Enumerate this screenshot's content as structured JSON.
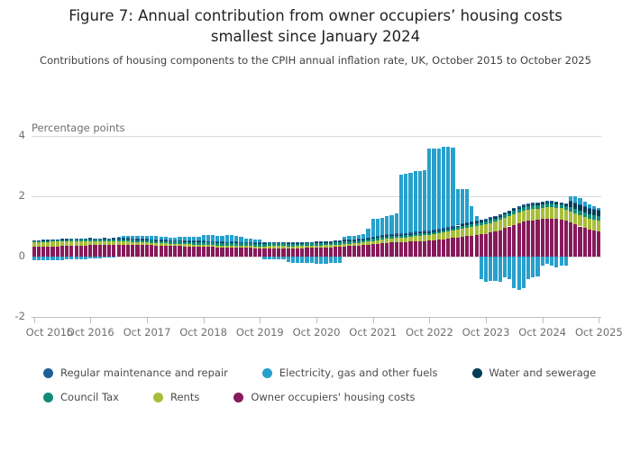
{
  "page": {
    "title": "Figure 7: Annual contribution from owner occupiers’ housing costs smallest since January 2024",
    "subtitle": "Contributions of housing components to the CPIH annual inflation rate, UK, October 2015 to October 2025"
  },
  "y_axis": {
    "label": "Percentage points",
    "ticks": [
      "4",
      "2",
      "0",
      "-2"
    ]
  },
  "x_axis": {
    "ticks": [
      "Oct 2015",
      "Oct 2016",
      "Oct 2017",
      "Oct 2018",
      "Oct 2019",
      "Oct 2020",
      "Oct 2021",
      "Oct 2022",
      "Oct 2023",
      "Oct 2024",
      "Oct 2025"
    ]
  },
  "legend": [
    {
      "label": "Regular maintenance and repair",
      "color": "#206095"
    },
    {
      "label": "Electricity, gas and other fuels",
      "color": "#27a0cc"
    },
    {
      "label": "Water and sewerage",
      "color": "#003c57"
    },
    {
      "label": "Council Tax",
      "color": "#118c7b"
    },
    {
      "label": "Rents",
      "color": "#a8bd3a"
    },
    {
      "label": "Owner occupiers' housing costs",
      "color": "#871a5b"
    }
  ],
  "chart_data": {
    "type": "bar",
    "stacked": true,
    "frequency": "monthly",
    "x_start": "Oct 2015",
    "x_end": "Oct 2025",
    "x_tick_labels": [
      "Oct 2015",
      "Oct 2016",
      "Oct 2017",
      "Oct 2018",
      "Oct 2019",
      "Oct 2020",
      "Oct 2021",
      "Oct 2022",
      "Oct 2023",
      "Oct 2024",
      "Oct 2025"
    ],
    "title": "Figure 7: Annual contribution from owner occupiers’ housing costs smallest since January 2024",
    "ylabel": "Percentage points",
    "ylim": [
      -2,
      4
    ],
    "grid": true,
    "legend_position": "bottom",
    "series": [
      {
        "name": "Owner occupiers' housing costs",
        "color": "#871a5b",
        "values": [
          0.32,
          0.32,
          0.33,
          0.33,
          0.34,
          0.34,
          0.35,
          0.35,
          0.36,
          0.36,
          0.37,
          0.37,
          0.38,
          0.38,
          0.38,
          0.39,
          0.39,
          0.4,
          0.4,
          0.4,
          0.4,
          0.39,
          0.39,
          0.39,
          0.38,
          0.38,
          0.37,
          0.37,
          0.36,
          0.36,
          0.35,
          0.35,
          0.34,
          0.34,
          0.33,
          0.33,
          0.33,
          0.32,
          0.32,
          0.31,
          0.31,
          0.3,
          0.3,
          0.3,
          0.29,
          0.29,
          0.29,
          0.28,
          0.28,
          0.28,
          0.28,
          0.28,
          0.28,
          0.28,
          0.27,
          0.27,
          0.28,
          0.28,
          0.29,
          0.29,
          0.3,
          0.3,
          0.31,
          0.31,
          0.32,
          0.33,
          0.34,
          0.35,
          0.36,
          0.37,
          0.38,
          0.4,
          0.42,
          0.43,
          0.45,
          0.46,
          0.47,
          0.48,
          0.48,
          0.49,
          0.5,
          0.51,
          0.52,
          0.52,
          0.53,
          0.54,
          0.56,
          0.58,
          0.6,
          0.62,
          0.64,
          0.66,
          0.68,
          0.7,
          0.72,
          0.74,
          0.76,
          0.8,
          0.84,
          0.88,
          0.95,
          1.0,
          1.05,
          1.1,
          1.15,
          1.18,
          1.2,
          1.22,
          1.24,
          1.25,
          1.25,
          1.24,
          1.22,
          1.18,
          1.12,
          1.06,
          1.0,
          0.95,
          0.9,
          0.87,
          0.85
        ]
      },
      {
        "name": "Rents",
        "color": "#a8bd3a",
        "values": [
          0.15,
          0.15,
          0.15,
          0.16,
          0.16,
          0.16,
          0.15,
          0.15,
          0.15,
          0.15,
          0.14,
          0.14,
          0.14,
          0.13,
          0.13,
          0.13,
          0.12,
          0.12,
          0.11,
          0.11,
          0.1,
          0.1,
          0.09,
          0.09,
          0.09,
          0.08,
          0.08,
          0.08,
          0.08,
          0.07,
          0.07,
          0.07,
          0.07,
          0.07,
          0.07,
          0.07,
          0.07,
          0.07,
          0.07,
          0.06,
          0.06,
          0.06,
          0.06,
          0.06,
          0.06,
          0.06,
          0.06,
          0.06,
          0.06,
          0.06,
          0.07,
          0.07,
          0.07,
          0.07,
          0.07,
          0.07,
          0.07,
          0.07,
          0.07,
          0.07,
          0.07,
          0.07,
          0.07,
          0.07,
          0.07,
          0.07,
          0.08,
          0.08,
          0.08,
          0.09,
          0.09,
          0.1,
          0.1,
          0.11,
          0.12,
          0.13,
          0.13,
          0.14,
          0.14,
          0.15,
          0.16,
          0.17,
          0.18,
          0.19,
          0.19,
          0.2,
          0.21,
          0.22,
          0.23,
          0.24,
          0.25,
          0.26,
          0.27,
          0.28,
          0.29,
          0.3,
          0.3,
          0.31,
          0.32,
          0.33,
          0.34,
          0.34,
          0.35,
          0.35,
          0.36,
          0.36,
          0.37,
          0.37,
          0.38,
          0.38,
          0.38,
          0.38,
          0.38,
          0.37,
          0.37,
          0.37,
          0.36,
          0.36,
          0.35,
          0.34,
          0.33
        ]
      },
      {
        "name": "Council Tax",
        "color": "#118c7b",
        "values": [
          0.04,
          0.04,
          0.04,
          0.04,
          0.04,
          0.04,
          0.06,
          0.06,
          0.06,
          0.06,
          0.06,
          0.06,
          0.06,
          0.06,
          0.06,
          0.06,
          0.06,
          0.06,
          0.08,
          0.08,
          0.08,
          0.08,
          0.08,
          0.08,
          0.08,
          0.08,
          0.08,
          0.08,
          0.08,
          0.08,
          0.09,
          0.09,
          0.09,
          0.09,
          0.09,
          0.09,
          0.09,
          0.09,
          0.09,
          0.09,
          0.09,
          0.09,
          0.1,
          0.1,
          0.1,
          0.1,
          0.1,
          0.1,
          0.1,
          0.1,
          0.1,
          0.1,
          0.1,
          0.1,
          0.1,
          0.1,
          0.1,
          0.1,
          0.1,
          0.1,
          0.1,
          0.1,
          0.1,
          0.1,
          0.1,
          0.1,
          0.1,
          0.1,
          0.1,
          0.1,
          0.1,
          0.1,
          0.1,
          0.1,
          0.1,
          0.1,
          0.1,
          0.1,
          0.08,
          0.08,
          0.08,
          0.08,
          0.08,
          0.08,
          0.08,
          0.08,
          0.08,
          0.08,
          0.08,
          0.08,
          0.1,
          0.1,
          0.1,
          0.1,
          0.1,
          0.1,
          0.1,
          0.1,
          0.1,
          0.1,
          0.1,
          0.1,
          0.12,
          0.12,
          0.12,
          0.12,
          0.12,
          0.12,
          0.12,
          0.12,
          0.12,
          0.12,
          0.12,
          0.12,
          0.16,
          0.16,
          0.16,
          0.16,
          0.16,
          0.16,
          0.16
        ]
      },
      {
        "name": "Water and sewerage",
        "color": "#003c57",
        "values": [
          0.02,
          0.02,
          0.02,
          0.02,
          0.02,
          0.02,
          0.02,
          0.02,
          0.02,
          0.02,
          0.02,
          0.02,
          0.02,
          0.02,
          0.02,
          0.02,
          0.02,
          0.02,
          0.02,
          0.02,
          0.02,
          0.02,
          0.02,
          0.02,
          0.02,
          0.02,
          0.02,
          0.02,
          0.02,
          0.02,
          0.02,
          0.02,
          0.02,
          0.02,
          0.02,
          0.02,
          0.02,
          0.02,
          0.02,
          0.02,
          0.02,
          0.02,
          0.02,
          0.02,
          0.02,
          0.02,
          0.02,
          0.02,
          0.02,
          0.02,
          0.02,
          0.02,
          0.02,
          0.02,
          0.01,
          0.01,
          0.01,
          0.01,
          0.01,
          0.01,
          0.01,
          0.01,
          0.01,
          0.01,
          0.01,
          0.01,
          0.01,
          0.01,
          0.01,
          0.01,
          0.01,
          0.01,
          0.01,
          0.01,
          0.01,
          0.01,
          0.01,
          0.01,
          0.02,
          0.02,
          0.02,
          0.02,
          0.02,
          0.02,
          0.02,
          0.02,
          0.02,
          0.02,
          0.02,
          0.02,
          0.04,
          0.04,
          0.04,
          0.04,
          0.04,
          0.04,
          0.04,
          0.04,
          0.04,
          0.04,
          0.04,
          0.04,
          0.05,
          0.05,
          0.05,
          0.05,
          0.05,
          0.05,
          0.05,
          0.05,
          0.05,
          0.05,
          0.05,
          0.05,
          0.18,
          0.18,
          0.18,
          0.18,
          0.18,
          0.18,
          0.18
        ]
      },
      {
        "name": "Regular maintenance and repair",
        "color": "#206095",
        "values": [
          0.02,
          0.02,
          0.02,
          0.02,
          0.02,
          0.02,
          0.02,
          0.02,
          0.02,
          0.02,
          0.02,
          0.02,
          0.02,
          0.02,
          0.02,
          0.02,
          0.02,
          0.02,
          0.02,
          0.02,
          0.02,
          0.02,
          0.02,
          0.02,
          0.02,
          0.02,
          0.02,
          0.02,
          0.02,
          0.02,
          0.02,
          0.02,
          0.02,
          0.02,
          0.02,
          0.02,
          0.02,
          0.02,
          0.02,
          0.02,
          0.02,
          0.02,
          0.02,
          0.02,
          0.02,
          0.02,
          0.02,
          0.02,
          0.02,
          0.02,
          0.02,
          0.02,
          0.02,
          0.02,
          0.02,
          0.02,
          0.02,
          0.02,
          0.02,
          0.02,
          0.02,
          0.02,
          0.02,
          0.03,
          0.03,
          0.03,
          0.03,
          0.03,
          0.03,
          0.03,
          0.03,
          0.03,
          0.03,
          0.03,
          0.03,
          0.05,
          0.05,
          0.05,
          0.05,
          0.05,
          0.05,
          0.05,
          0.05,
          0.05,
          0.05,
          0.05,
          0.05,
          0.05,
          0.05,
          0.05,
          0.05,
          0.05,
          0.05,
          0.05,
          0.05,
          0.05,
          0.05,
          0.05,
          0.05,
          0.04,
          0.04,
          0.04,
          0.04,
          0.04,
          0.04,
          0.04,
          0.04,
          0.04,
          0.04,
          0.04,
          0.04,
          0.03,
          0.03,
          0.03,
          0.03,
          0.03,
          0.03,
          0.03,
          0.03,
          0.03,
          0.03
        ]
      },
      {
        "name": "Electricity, gas and other fuels",
        "color": "#27a0cc",
        "values": [
          -0.12,
          -0.13,
          -0.13,
          -0.13,
          -0.13,
          -0.12,
          -0.11,
          -0.1,
          -0.1,
          -0.09,
          -0.08,
          -0.08,
          -0.07,
          -0.06,
          -0.05,
          -0.04,
          -0.03,
          -0.02,
          0.03,
          0.05,
          0.06,
          0.08,
          0.09,
          0.1,
          0.11,
          0.12,
          0.12,
          0.1,
          0.1,
          0.09,
          0.09,
          0.1,
          0.11,
          0.12,
          0.13,
          0.14,
          0.18,
          0.19,
          0.2,
          0.18,
          0.2,
          0.22,
          0.21,
          0.2,
          0.18,
          0.12,
          0.1,
          0.09,
          0.08,
          -0.08,
          -0.09,
          -0.09,
          -0.09,
          -0.08,
          -0.18,
          -0.2,
          -0.22,
          -0.22,
          -0.22,
          -0.22,
          -0.25,
          -0.25,
          -0.24,
          -0.22,
          -0.21,
          -0.2,
          0.1,
          0.12,
          0.12,
          0.13,
          0.13,
          0.3,
          0.58,
          0.58,
          0.58,
          0.6,
          0.62,
          0.65,
          1.95,
          1.95,
          1.97,
          2.0,
          2.0,
          2.0,
          2.7,
          2.68,
          2.66,
          2.7,
          2.65,
          2.6,
          1.15,
          1.12,
          1.1,
          0.5,
          0.15,
          -0.75,
          -0.85,
          -0.8,
          -0.8,
          -0.85,
          -0.7,
          -0.75,
          -1.05,
          -1.1,
          -1.05,
          -0.75,
          -0.7,
          -0.65,
          -0.3,
          -0.25,
          -0.3,
          -0.35,
          -0.3,
          -0.3,
          0.15,
          0.2,
          0.2,
          0.15,
          0.1,
          0.1,
          0.05
        ]
      }
    ]
  }
}
